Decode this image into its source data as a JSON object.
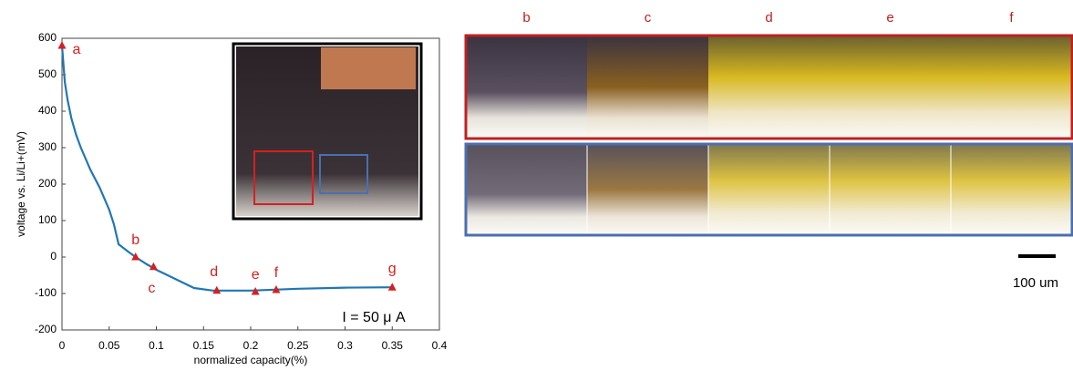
{
  "chart_data": {
    "type": "line",
    "xlabel": "normalized capacity(%)",
    "ylabel": "voltage vs. Li/Li+(mV)",
    "annotation": "I = 50 μ A",
    "color": "#1f77b4",
    "marker_color": "#d62020",
    "grid": false,
    "x": [
      0,
      0.003,
      0.006,
      0.01,
      0.015,
      0.02,
      0.03,
      0.04,
      0.05,
      0.055,
      0.06,
      0.07,
      0.078,
      0.09,
      0.1,
      0.12,
      0.14,
      0.16,
      0.2,
      0.25,
      0.3,
      0.35
    ],
    "values": [
      580,
      480,
      430,
      380,
      335,
      300,
      240,
      190,
      130,
      90,
      35,
      15,
      0,
      -20,
      -35,
      -60,
      -85,
      -92,
      -92,
      -87,
      -84,
      -83
    ],
    "points": [
      {
        "label": "a",
        "x": 0,
        "y": 580
      },
      {
        "label": "b",
        "x": 0.078,
        "y": 0
      },
      {
        "label": "c",
        "x": 0.097,
        "y": -27
      },
      {
        "label": "d",
        "x": 0.164,
        "y": -92
      },
      {
        "label": "e",
        "x": 0.205,
        "y": -95
      },
      {
        "label": "f",
        "x": 0.227,
        "y": -90
      },
      {
        "label": "g",
        "x": 0.35,
        "y": -83
      }
    ],
    "xlim": [
      0,
      0.4
    ],
    "xticks": [
      0,
      0.05,
      0.1,
      0.15,
      0.2,
      0.25,
      0.3,
      0.35,
      0.4
    ],
    "ylim": [
      -200,
      600
    ],
    "yticks": [
      -200,
      -100,
      0,
      100,
      200,
      300,
      400,
      500,
      600
    ]
  },
  "panels": {
    "columns": [
      "b",
      "c",
      "d",
      "e",
      "f"
    ],
    "scale_bar": "100 um"
  }
}
